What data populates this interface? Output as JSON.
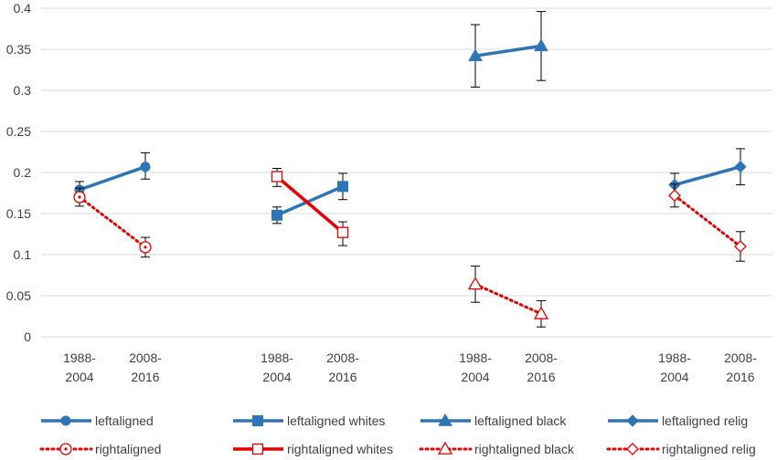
{
  "chart_data": {
    "type": "line",
    "ylim": [
      0,
      0.4
    ],
    "yticks": [
      "0",
      "0.05",
      "0.1",
      "0.15",
      "0.2",
      "0.25",
      "0.3",
      "0.35",
      "0.4"
    ],
    "grid": true,
    "legend_placement": "bottom",
    "groups": [
      {
        "categories": [
          [
            "1988-",
            "2004"
          ],
          [
            "2008-",
            "2016"
          ]
        ]
      },
      {
        "categories": [
          [
            "1988-",
            "2004"
          ],
          [
            "2008-",
            "2016"
          ]
        ]
      },
      {
        "categories": [
          [
            "1988-",
            "2004"
          ],
          [
            "2008-",
            "2016"
          ]
        ]
      },
      {
        "categories": [
          [
            "1988-",
            "2004"
          ],
          [
            "2008-",
            "2016"
          ]
        ]
      }
    ],
    "series": [
      {
        "name": "leftaligned",
        "group": 0,
        "style": "solid",
        "color": "#2e75b6",
        "marker": "circle",
        "values": [
          0.179,
          0.207
        ],
        "err_low": [
          0.169,
          0.192
        ],
        "err_high": [
          0.189,
          0.224
        ]
      },
      {
        "name": "rightaligned",
        "group": 0,
        "style": "dotted",
        "color": "#e60000",
        "marker": "circle-open",
        "values": [
          0.17,
          0.109
        ],
        "err_low": [
          0.159,
          0.097
        ],
        "err_high": [
          0.181,
          0.121
        ]
      },
      {
        "name": "leftaligned whites",
        "group": 1,
        "style": "solid",
        "color": "#2e75b6",
        "marker": "square",
        "values": [
          0.148,
          0.183
        ],
        "err_low": [
          0.138,
          0.167
        ],
        "err_high": [
          0.158,
          0.199
        ]
      },
      {
        "name": "rightaligned whites",
        "group": 1,
        "style": "solid-legend",
        "color": "#e60000",
        "marker": "square-open",
        "values": [
          0.195,
          0.127
        ],
        "err_low": [
          0.183,
          0.111
        ],
        "err_high": [
          0.205,
          0.14
        ]
      },
      {
        "name": "leftaligned black",
        "group": 2,
        "style": "solid",
        "color": "#2e75b6",
        "marker": "triangle",
        "values": [
          0.342,
          0.354
        ],
        "err_low": [
          0.304,
          0.312
        ],
        "err_high": [
          0.38,
          0.396
        ]
      },
      {
        "name": "rightaligned black",
        "group": 2,
        "style": "dotted",
        "color": "#e60000",
        "marker": "triangle-open",
        "values": [
          0.064,
          0.028
        ],
        "err_low": [
          0.042,
          0.012
        ],
        "err_high": [
          0.086,
          0.044
        ]
      },
      {
        "name": "leftaligned relig",
        "group": 3,
        "style": "solid",
        "color": "#2e75b6",
        "marker": "diamond",
        "values": [
          0.185,
          0.207
        ],
        "err_low": [
          0.171,
          0.185
        ],
        "err_high": [
          0.199,
          0.229
        ]
      },
      {
        "name": "rightaligned relig",
        "group": 3,
        "style": "dotted",
        "color": "#e60000",
        "marker": "diamond-open",
        "values": [
          0.172,
          0.11
        ],
        "err_low": [
          0.158,
          0.092
        ],
        "err_high": [
          0.186,
          0.128
        ]
      }
    ]
  }
}
